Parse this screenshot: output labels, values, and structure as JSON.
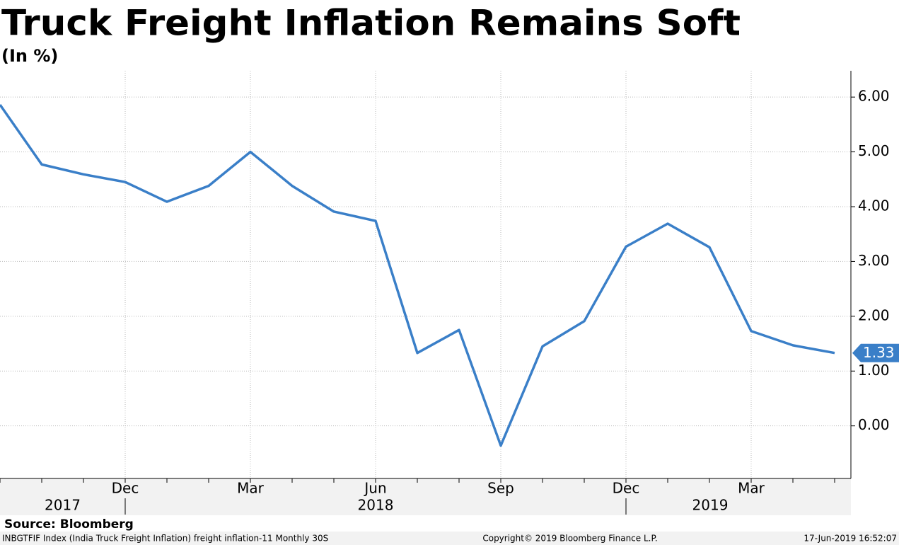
{
  "chart_data": {
    "type": "line",
    "title": "Truck Freight Inflation Remains Soft",
    "subtitle": "(In %)",
    "categories": [
      null,
      null,
      null,
      "Dec",
      null,
      null,
      "Mar",
      null,
      null,
      "Jun",
      null,
      null,
      "Sep",
      null,
      null,
      "Dec",
      null,
      null,
      "Mar",
      null,
      null
    ],
    "years": [
      "2017",
      "2018",
      "2019"
    ],
    "series": [
      {
        "name": "INBGTFIF Index",
        "color": "#3a7fc8",
        "values": [
          5.86,
          4.77,
          4.59,
          4.45,
          4.09,
          4.38,
          5.0,
          4.38,
          3.91,
          3.74,
          1.33,
          1.75,
          -0.36,
          1.45,
          1.91,
          3.27,
          3.69,
          3.26,
          1.73,
          1.47,
          1.33
        ]
      }
    ],
    "ylim": [
      -0.96,
      6.48
    ],
    "yticks": [
      {
        "value": 0,
        "label": "0.00"
      },
      {
        "value": 1,
        "label": "1.00"
      },
      {
        "value": 2,
        "label": "2.00"
      },
      {
        "value": 3,
        "label": "3.00"
      },
      {
        "value": 4,
        "label": "4.00"
      },
      {
        "value": 5,
        "label": "5.00"
      },
      {
        "value": 6,
        "label": "6.00"
      }
    ],
    "grid": true,
    "source": "Source: Bloomberg",
    "footer_left": "INBGTFIF Index (India Truck Freight Inflation) freight inflation-11  Monthly 30S",
    "footer_center": "Copyright© 2019 Bloomberg Finance L.P.",
    "footer_right": "17-Jun-2019 16:52:07"
  }
}
